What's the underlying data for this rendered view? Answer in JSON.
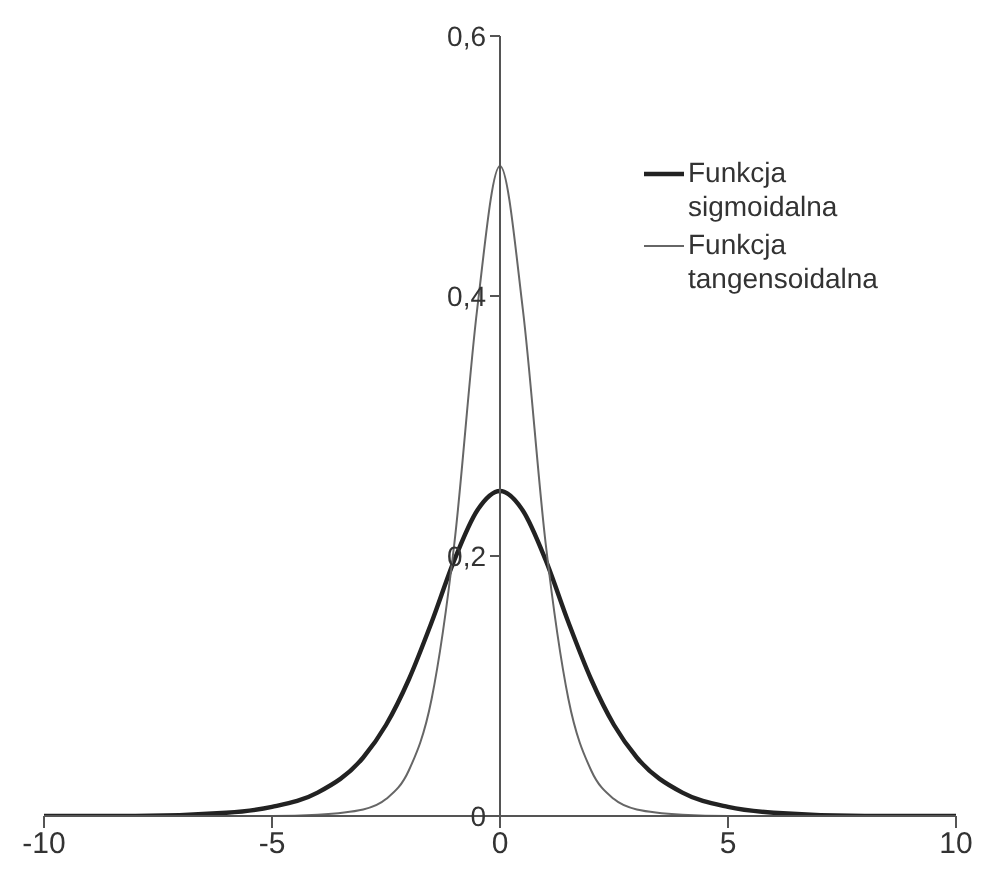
{
  "chart_data": {
    "type": "line",
    "x": [
      -10,
      -8,
      -6,
      -5,
      -4,
      -3,
      -2.5,
      -2,
      -1.5,
      -1,
      -0.5,
      0,
      0.5,
      1,
      1.5,
      2,
      2.5,
      3,
      4,
      5,
      6,
      8,
      10
    ],
    "series": [
      {
        "name": "Funkcja sigmoidalna",
        "color": "#222222",
        "values": [
          0,
          0,
          0.0025,
          0.007,
          0.018,
          0.045,
          0.07,
          0.105,
          0.149,
          0.197,
          0.235,
          0.25,
          0.235,
          0.197,
          0.149,
          0.105,
          0.07,
          0.045,
          0.018,
          0.007,
          0.0025,
          0,
          0
        ]
      },
      {
        "name": "Funkcja tangensoidalna",
        "color": "#666666",
        "values": [
          0,
          0,
          0,
          0,
          0.001,
          0.005,
          0.013,
          0.035,
          0.09,
          0.21,
          0.39,
          0.5,
          0.39,
          0.21,
          0.09,
          0.035,
          0.013,
          0.005,
          0.001,
          0,
          0,
          0,
          0
        ]
      }
    ],
    "xlim": [
      -10,
      10
    ],
    "xticks": [
      -10,
      -5,
      0,
      5,
      10
    ],
    "ylim": [
      0,
      0.6
    ],
    "yticks": [
      {
        "value": 0,
        "label": "0"
      },
      {
        "value": 0.2,
        "label": "0,2"
      },
      {
        "value": 0.4,
        "label": "0,4"
      },
      {
        "value": 0.6,
        "label": "0,6"
      }
    ],
    "grid": false,
    "legend": "top right",
    "marker": "none",
    "line_style": "solid"
  }
}
